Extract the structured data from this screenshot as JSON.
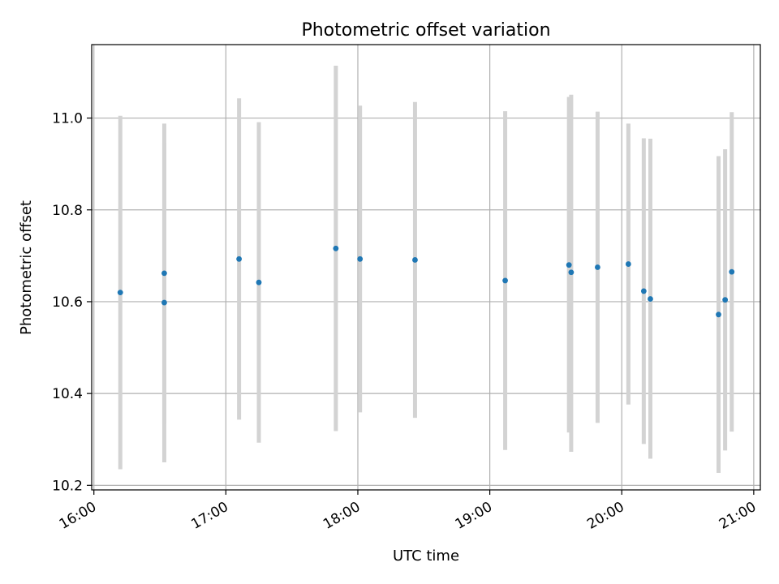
{
  "chart_data": {
    "type": "scatter",
    "title": "Photometric offset variation",
    "xlabel": "UTC time",
    "ylabel": "Photometric offset",
    "x_axis": "time",
    "xlim": [
      "15:59",
      "21:03"
    ],
    "ylim": [
      10.19,
      11.16
    ],
    "x_ticks": [
      "16:00",
      "17:00",
      "18:00",
      "19:00",
      "20:00",
      "21:00"
    ],
    "y_ticks": [
      10.2,
      10.4,
      10.6,
      10.8,
      11.0
    ],
    "grid": true,
    "point_color": "#1f77b4",
    "errorbar_color": "#d3d3d3",
    "points": [
      {
        "x": "16:12",
        "y": 10.62,
        "ylow": 10.235,
        "yhigh": 11.005
      },
      {
        "x": "16:32",
        "y": 10.662,
        "ylow": 10.335,
        "yhigh": 10.988
      },
      {
        "x": "16:32",
        "y": 10.598,
        "ylow": 10.25,
        "yhigh": 10.946
      },
      {
        "x": "17:06",
        "y": 10.693,
        "ylow": 10.343,
        "yhigh": 11.043
      },
      {
        "x": "17:15",
        "y": 10.642,
        "ylow": 10.293,
        "yhigh": 10.991
      },
      {
        "x": "17:50",
        "y": 10.716,
        "ylow": 10.318,
        "yhigh": 11.114
      },
      {
        "x": "18:01",
        "y": 10.693,
        "ylow": 10.359,
        "yhigh": 11.027
      },
      {
        "x": "18:26",
        "y": 10.691,
        "ylow": 10.347,
        "yhigh": 11.035
      },
      {
        "x": "19:07",
        "y": 10.646,
        "ylow": 10.277,
        "yhigh": 11.015
      },
      {
        "x": "19:36",
        "y": 10.68,
        "ylow": 10.315,
        "yhigh": 11.046
      },
      {
        "x": "19:37",
        "y": 10.664,
        "ylow": 10.273,
        "yhigh": 11.051
      },
      {
        "x": "19:49",
        "y": 10.675,
        "ylow": 10.336,
        "yhigh": 11.014
      },
      {
        "x": "20:03",
        "y": 10.682,
        "ylow": 10.376,
        "yhigh": 10.988
      },
      {
        "x": "20:10",
        "y": 10.623,
        "ylow": 10.29,
        "yhigh": 10.956
      },
      {
        "x": "20:13",
        "y": 10.606,
        "ylow": 10.258,
        "yhigh": 10.955
      },
      {
        "x": "20:44",
        "y": 10.572,
        "ylow": 10.227,
        "yhigh": 10.917
      },
      {
        "x": "20:47",
        "y": 10.604,
        "ylow": 10.276,
        "yhigh": 10.932
      },
      {
        "x": "20:50",
        "y": 10.665,
        "ylow": 10.317,
        "yhigh": 11.013
      }
    ]
  }
}
